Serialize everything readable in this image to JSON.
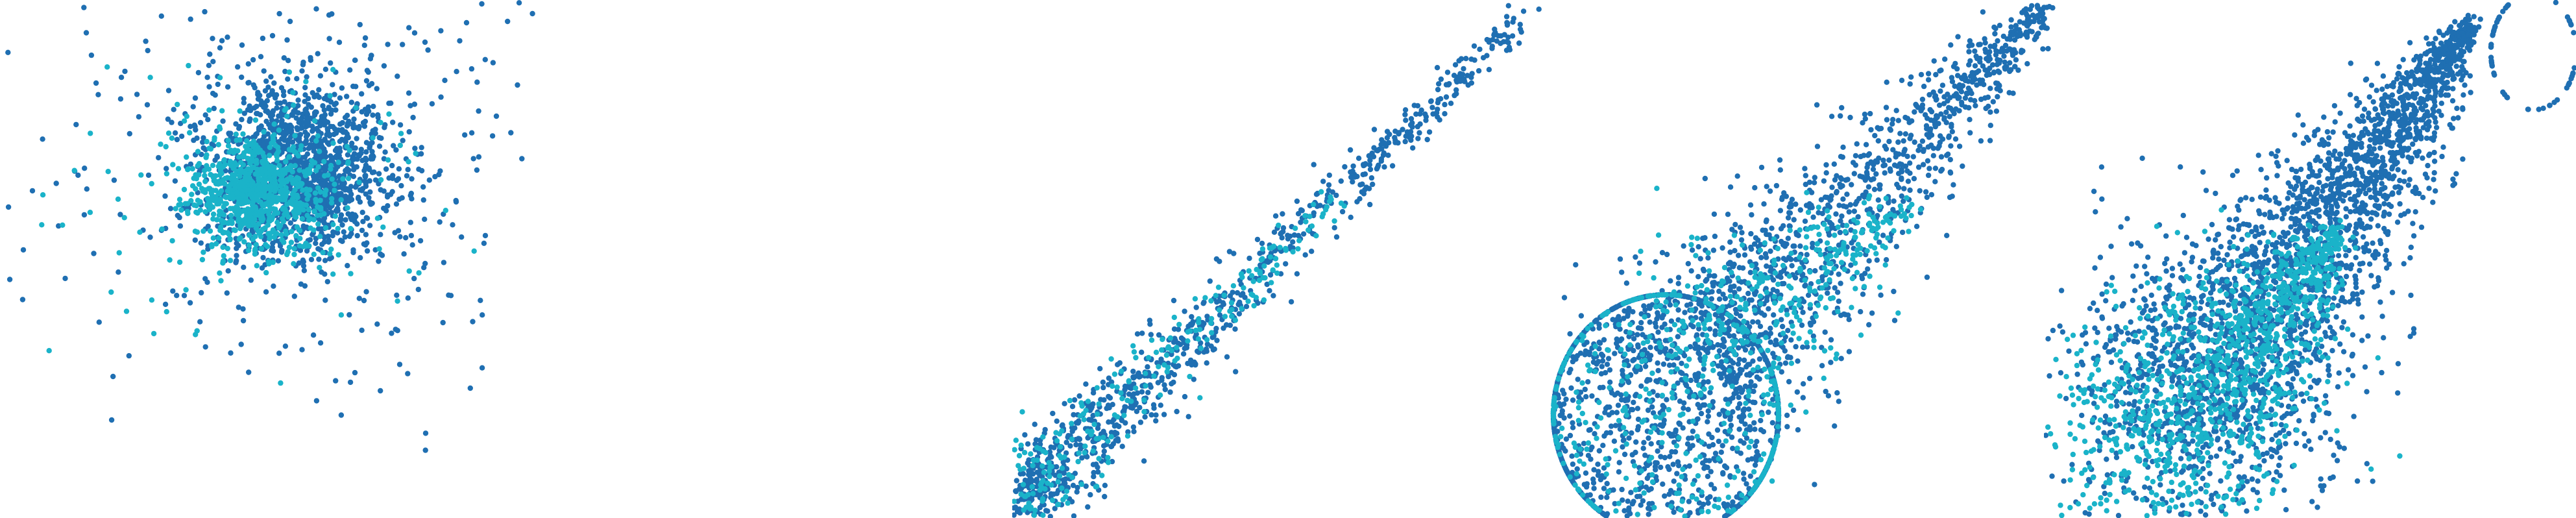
{
  "colors": {
    "background": "#ffffff",
    "series": [
      "#1f6fb2",
      "#1ab3c9"
    ]
  },
  "chart_data": [
    {
      "type": "scatter",
      "title": "",
      "xlabel": "",
      "ylabel": "",
      "xlim": [
        -1,
        1
      ],
      "ylim": [
        -1,
        1
      ],
      "grid": false,
      "legend": "none",
      "shape": "gaussian-blob",
      "series": [
        {
          "color": "#1f6fb2",
          "n": 1700,
          "center": [
            0.12,
            0.35
          ],
          "spread": [
            0.17,
            0.17
          ],
          "notes_outliers": [
            [
              0.55,
              0.3
            ],
            [
              0.85,
              0.05
            ],
            [
              -0.9,
              0.35
            ],
            [
              0.1,
              -0.78
            ],
            [
              0.45,
              -0.75
            ]
          ]
        },
        {
          "color": "#1ab3c9",
          "n": 900,
          "center": [
            -0.05,
            0.25
          ],
          "spread": [
            0.12,
            0.1
          ]
        }
      ]
    },
    {
      "type": "scatter",
      "title": "",
      "xlabel": "",
      "ylabel": "",
      "xlim": [
        0,
        1
      ],
      "ylim": [
        0,
        1
      ],
      "grid": false,
      "legend": "none",
      "shape": "diagonal-streak",
      "series": [
        {
          "color": "#1f6fb2",
          "n": 900,
          "from": [
            0.02,
            0.04
          ],
          "to": [
            0.95,
            0.98
          ]
        },
        {
          "color": "#1ab3c9",
          "n": 260,
          "from": [
            0.02,
            0.04
          ],
          "to": [
            0.6,
            0.62
          ]
        }
      ]
    },
    {
      "type": "scatter",
      "title": "",
      "xlabel": "",
      "ylabel": "",
      "xlim": [
        0,
        1
      ],
      "ylim": [
        0,
        1
      ],
      "grid": false,
      "legend": "none",
      "shape": "ring-with-tail",
      "series": [
        {
          "color": "#1f6fb2",
          "n": 2600,
          "ring_center": [
            0.25,
            0.2
          ],
          "ring_radius": 0.22,
          "tail_to": [
            0.95,
            0.98
          ]
        },
        {
          "color": "#1ab3c9",
          "n": 700,
          "ring_center": [
            0.25,
            0.2
          ],
          "ring_radius": 0.22,
          "tail_to": [
            0.7,
            0.6
          ]
        }
      ]
    },
    {
      "type": "scatter",
      "title": "",
      "xlabel": "",
      "ylabel": "",
      "xlim": [
        0,
        1
      ],
      "ylim": [
        0,
        1
      ],
      "grid": false,
      "legend": "none",
      "shape": "cone-with-loop",
      "series": [
        {
          "color": "#1f6fb2",
          "n": 2800,
          "base_center": [
            0.25,
            0.18
          ],
          "tip": [
            0.8,
            0.95
          ],
          "loop_center": [
            0.92,
            0.9
          ],
          "loop_radius": 0.08
        },
        {
          "color": "#1ab3c9",
          "n": 1200,
          "base_center": [
            0.2,
            0.12
          ],
          "tip": [
            0.55,
            0.55
          ]
        }
      ]
    }
  ]
}
